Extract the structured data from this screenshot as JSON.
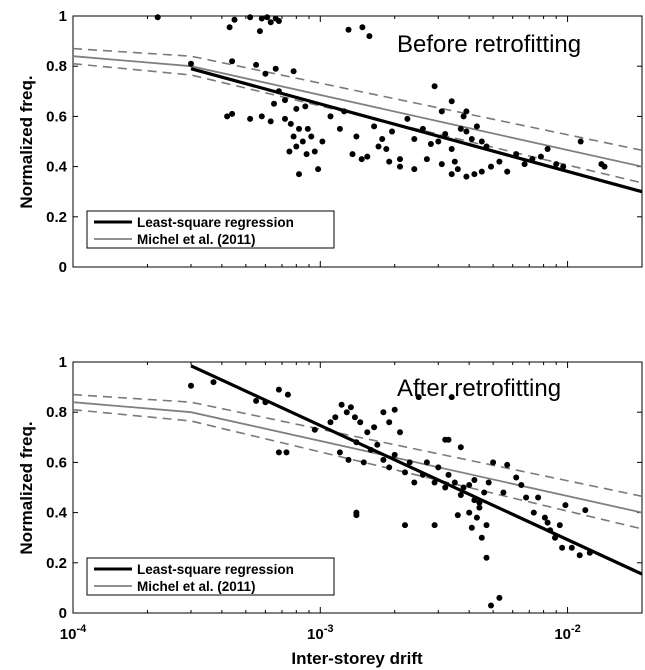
{
  "chart_data": [
    {
      "type": "scatter",
      "title": "Before retrofitting",
      "xlabel": "",
      "ylabel": "Normalized freq.",
      "xscale": "log",
      "xlim": [
        0.0001,
        0.02
      ],
      "ylim": [
        0,
        1
      ],
      "yticks": [
        {
          "v": 0,
          "label": "0"
        },
        {
          "v": 0.2,
          "label": "0.2"
        },
        {
          "v": 0.4,
          "label": "0.4"
        },
        {
          "v": 0.6,
          "label": "0.6"
        },
        {
          "v": 0.8,
          "label": "0.8"
        },
        {
          "v": 1,
          "label": "1"
        }
      ],
      "legend": {
        "position": "bottom-left",
        "items": [
          {
            "label": "Least-square regression",
            "color": "#000000",
            "style": "solid-thick"
          },
          {
            "label": "Michel et al. (2011)",
            "color": "#808080",
            "style": "solid"
          }
        ]
      },
      "points": [
        [
          0.00022,
          0.995
        ],
        [
          0.00043,
          0.955
        ],
        [
          0.00045,
          0.985
        ],
        [
          0.00052,
          0.995
        ],
        [
          0.00058,
          0.99
        ],
        [
          0.00061,
          0.995
        ],
        [
          0.00066,
          0.99
        ],
        [
          0.00057,
          0.94
        ],
        [
          0.00063,
          0.975
        ],
        [
          0.00068,
          0.98
        ],
        [
          0.0013,
          0.945
        ],
        [
          0.00148,
          0.955
        ],
        [
          0.00158,
          0.92
        ],
        [
          0.0003,
          0.81
        ],
        [
          0.00044,
          0.82
        ],
        [
          0.00055,
          0.805
        ],
        [
          0.0006,
          0.77
        ],
        [
          0.00066,
          0.79
        ],
        [
          0.00078,
          0.78
        ],
        [
          0.00068,
          0.7
        ],
        [
          0.00042,
          0.6
        ],
        [
          0.00044,
          0.61
        ],
        [
          0.00052,
          0.59
        ],
        [
          0.00058,
          0.6
        ],
        [
          0.00063,
          0.58
        ],
        [
          0.00072,
          0.59
        ],
        [
          0.00076,
          0.57
        ],
        [
          0.00082,
          0.55
        ],
        [
          0.00089,
          0.55
        ],
        [
          0.00065,
          0.65
        ],
        [
          0.00072,
          0.665
        ],
        [
          0.0008,
          0.63
        ],
        [
          0.00087,
          0.64
        ],
        [
          0.00078,
          0.52
        ],
        [
          0.00085,
          0.5
        ],
        [
          0.00092,
          0.52
        ],
        [
          0.00102,
          0.5
        ],
        [
          0.00075,
          0.46
        ],
        [
          0.0008,
          0.48
        ],
        [
          0.00088,
          0.45
        ],
        [
          0.00095,
          0.46
        ],
        [
          0.00082,
          0.37
        ],
        [
          0.00098,
          0.39
        ],
        [
          0.0011,
          0.6
        ],
        [
          0.0012,
          0.55
        ],
        [
          0.00125,
          0.62
        ],
        [
          0.00135,
          0.45
        ],
        [
          0.0014,
          0.52
        ],
        [
          0.00147,
          0.43
        ],
        [
          0.00155,
          0.44
        ],
        [
          0.00165,
          0.56
        ],
        [
          0.00172,
          0.48
        ],
        [
          0.00178,
          0.51
        ],
        [
          0.00185,
          0.47
        ],
        [
          0.00195,
          0.54
        ],
        [
          0.0021,
          0.43
        ],
        [
          0.00225,
          0.59
        ],
        [
          0.0024,
          0.51
        ],
        [
          0.0026,
          0.55
        ],
        [
          0.0028,
          0.49
        ],
        [
          0.003,
          0.5
        ],
        [
          0.0032,
          0.53
        ],
        [
          0.0034,
          0.47
        ],
        [
          0.0035,
          0.42
        ],
        [
          0.0037,
          0.55
        ],
        [
          0.0039,
          0.54
        ],
        [
          0.0041,
          0.51
        ],
        [
          0.0043,
          0.56
        ],
        [
          0.0045,
          0.5
        ],
        [
          0.0047,
          0.48
        ],
        [
          0.0019,
          0.42
        ],
        [
          0.0021,
          0.4
        ],
        [
          0.0024,
          0.39
        ],
        [
          0.0027,
          0.43
        ],
        [
          0.0031,
          0.41
        ],
        [
          0.0034,
          0.37
        ],
        [
          0.0036,
          0.39
        ],
        [
          0.0039,
          0.36
        ],
        [
          0.0042,
          0.37
        ],
        [
          0.0045,
          0.38
        ],
        [
          0.0049,
          0.4
        ],
        [
          0.0029,
          0.72
        ],
        [
          0.0031,
          0.62
        ],
        [
          0.0034,
          0.66
        ],
        [
          0.0038,
          0.6
        ],
        [
          0.0039,
          0.62
        ],
        [
          0.0053,
          0.42
        ],
        [
          0.0057,
          0.38
        ],
        [
          0.0062,
          0.45
        ],
        [
          0.0067,
          0.41
        ],
        [
          0.0072,
          0.43
        ],
        [
          0.0078,
          0.44
        ],
        [
          0.0083,
          0.47
        ],
        [
          0.009,
          0.41
        ],
        [
          0.0096,
          0.4
        ],
        [
          0.0113,
          0.5
        ],
        [
          0.0137,
          0.41
        ],
        [
          0.0141,
          0.4
        ]
      ]
    },
    {
      "type": "scatter",
      "title": "After retrofitting",
      "xlabel": "Inter-storey drift",
      "ylabel": "Normalized freq.",
      "xscale": "log",
      "xlim": [
        0.0001,
        0.02
      ],
      "ylim": [
        0,
        1
      ],
      "xticks": [
        {
          "v": 0.0001,
          "base": "10",
          "exp": "-4"
        },
        {
          "v": 0.001,
          "base": "10",
          "exp": "-3"
        },
        {
          "v": 0.01,
          "base": "10",
          "exp": "-2"
        }
      ],
      "yticks": [
        {
          "v": 0,
          "label": "0"
        },
        {
          "v": 0.2,
          "label": "0.2"
        },
        {
          "v": 0.4,
          "label": "0.4"
        },
        {
          "v": 0.6,
          "label": "0.6"
        },
        {
          "v": 0.8,
          "label": "0.8"
        },
        {
          "v": 1,
          "label": "1"
        }
      ],
      "legend": {
        "position": "bottom-left",
        "items": [
          {
            "label": "Least-square regression",
            "color": "#000000",
            "style": "solid-thick"
          },
          {
            "label": "Michel et al. (2011)",
            "color": "#808080",
            "style": "solid"
          }
        ]
      },
      "points": [
        [
          0.0003,
          0.905
        ],
        [
          0.00037,
          0.92
        ],
        [
          0.00055,
          0.845
        ],
        [
          0.0006,
          0.84
        ],
        [
          0.00068,
          0.89
        ],
        [
          0.00074,
          0.87
        ],
        [
          0.00068,
          0.64
        ],
        [
          0.00073,
          0.64
        ],
        [
          0.00095,
          0.73
        ],
        [
          0.0011,
          0.76
        ],
        [
          0.00115,
          0.78
        ],
        [
          0.00122,
          0.83
        ],
        [
          0.00128,
          0.8
        ],
        [
          0.00133,
          0.82
        ],
        [
          0.00138,
          0.78
        ],
        [
          0.00145,
          0.76
        ],
        [
          0.00155,
          0.72
        ],
        [
          0.00165,
          0.74
        ],
        [
          0.0018,
          0.8
        ],
        [
          0.0019,
          0.76
        ],
        [
          0.002,
          0.81
        ],
        [
          0.0021,
          0.72
        ],
        [
          0.0012,
          0.64
        ],
        [
          0.0013,
          0.61
        ],
        [
          0.0014,
          0.68
        ],
        [
          0.0015,
          0.6
        ],
        [
          0.0016,
          0.65
        ],
        [
          0.0017,
          0.67
        ],
        [
          0.0018,
          0.61
        ],
        [
          0.0019,
          0.58
        ],
        [
          0.002,
          0.63
        ],
        [
          0.0022,
          0.56
        ],
        [
          0.0023,
          0.6
        ],
        [
          0.0024,
          0.52
        ],
        [
          0.0026,
          0.55
        ],
        [
          0.0027,
          0.6
        ],
        [
          0.0029,
          0.52
        ],
        [
          0.003,
          0.58
        ],
        [
          0.0032,
          0.5
        ],
        [
          0.0033,
          0.55
        ],
        [
          0.0035,
          0.52
        ],
        [
          0.0037,
          0.47
        ],
        [
          0.0038,
          0.5
        ],
        [
          0.004,
          0.51
        ],
        [
          0.0042,
          0.45
        ],
        [
          0.0044,
          0.44
        ],
        [
          0.0046,
          0.48
        ],
        [
          0.0048,
          0.52
        ],
        [
          0.0014,
          0.4
        ],
        [
          0.0014,
          0.39
        ],
        [
          0.0022,
          0.35
        ],
        [
          0.0029,
          0.35
        ],
        [
          0.0036,
          0.39
        ],
        [
          0.004,
          0.4
        ],
        [
          0.0043,
          0.38
        ],
        [
          0.0047,
          0.35
        ],
        [
          0.0041,
          0.34
        ],
        [
          0.0045,
          0.3
        ],
        [
          0.0047,
          0.22
        ],
        [
          0.0044,
          0.42
        ],
        [
          0.0025,
          0.86
        ],
        [
          0.0034,
          0.86
        ],
        [
          0.0033,
          0.69
        ],
        [
          0.0037,
          0.66
        ],
        [
          0.0032,
          0.69
        ],
        [
          0.0042,
          0.53
        ],
        [
          0.005,
          0.6
        ],
        [
          0.0055,
          0.48
        ],
        [
          0.0057,
          0.59
        ],
        [
          0.0062,
          0.54
        ],
        [
          0.0065,
          0.51
        ],
        [
          0.0068,
          0.46
        ],
        [
          0.0073,
          0.4
        ],
        [
          0.0076,
          0.46
        ],
        [
          0.0081,
          0.38
        ],
        [
          0.0083,
          0.36
        ],
        [
          0.0089,
          0.3
        ],
        [
          0.0095,
          0.26
        ],
        [
          0.0112,
          0.23
        ],
        [
          0.0104,
          0.26
        ],
        [
          0.0093,
          0.35
        ],
        [
          0.0085,
          0.33
        ],
        [
          0.0098,
          0.43
        ],
        [
          0.0118,
          0.41
        ],
        [
          0.0123,
          0.24
        ],
        [
          0.0049,
          0.03
        ],
        [
          0.0053,
          0.06
        ]
      ]
    }
  ]
}
